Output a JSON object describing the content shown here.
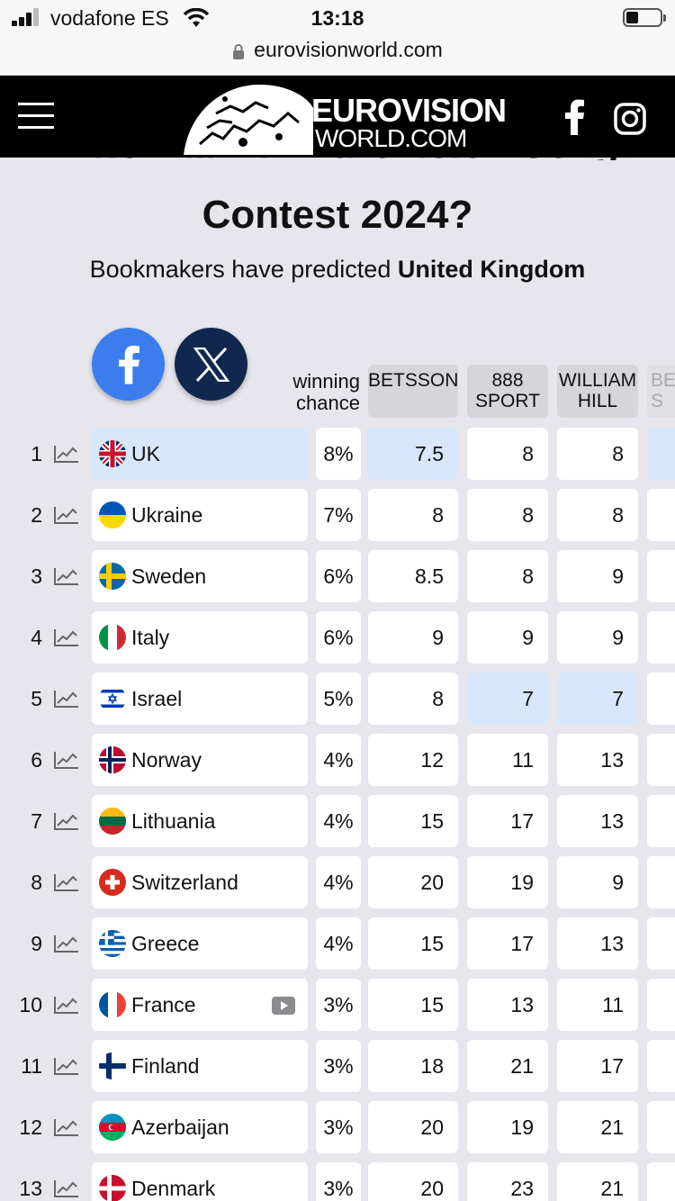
{
  "status": {
    "carrier": "vodafone ES",
    "time": "13:18"
  },
  "browser": {
    "url": "eurovisionworld.com"
  },
  "header": {
    "logo_line1": "EUROVISION",
    "logo_line2": "WORLD.COM"
  },
  "page": {
    "title_line1": "Who will win Eurovision Song",
    "title_line2": "Contest 2024?",
    "subtitle_prefix": "Bookmakers have predicted ",
    "subtitle_bold": "United Kingdom"
  },
  "table": {
    "chance_header_line1": "winning",
    "chance_header_line2": "chance",
    "bookmakers": [
      {
        "line1": "BETSSON",
        "line2": ""
      },
      {
        "line1": "888",
        "line2": "SPORT"
      },
      {
        "line1": "WILLIAM",
        "line2": "HILL"
      },
      {
        "line1": "BE",
        "line2": "S"
      }
    ],
    "rows": [
      {
        "rank": "1",
        "country": "UK",
        "flag": "uk",
        "chance": "8%",
        "odds": [
          "7.5",
          "8",
          "8"
        ],
        "highlight": [
          true,
          true,
          false,
          false
        ]
      },
      {
        "rank": "2",
        "country": "Ukraine",
        "flag": "ukraine",
        "chance": "7%",
        "odds": [
          "8",
          "8",
          "8"
        ],
        "highlight": [
          false,
          false,
          false,
          false
        ]
      },
      {
        "rank": "3",
        "country": "Sweden",
        "flag": "sweden",
        "chance": "6%",
        "odds": [
          "8.5",
          "8",
          "9"
        ],
        "highlight": [
          false,
          false,
          false,
          false
        ]
      },
      {
        "rank": "4",
        "country": "Italy",
        "flag": "italy",
        "chance": "6%",
        "odds": [
          "9",
          "9",
          "9"
        ],
        "highlight": [
          false,
          false,
          false,
          false
        ]
      },
      {
        "rank": "5",
        "country": "Israel",
        "flag": "israel",
        "chance": "5%",
        "odds": [
          "8",
          "7",
          "7"
        ],
        "highlight": [
          false,
          false,
          true,
          true
        ]
      },
      {
        "rank": "6",
        "country": "Norway",
        "flag": "norway",
        "chance": "4%",
        "odds": [
          "12",
          "11",
          "13"
        ],
        "highlight": [
          false,
          false,
          false,
          false
        ]
      },
      {
        "rank": "7",
        "country": "Lithuania",
        "flag": "lithuania",
        "chance": "4%",
        "odds": [
          "15",
          "17",
          "13"
        ],
        "highlight": [
          false,
          false,
          false,
          false
        ]
      },
      {
        "rank": "8",
        "country": "Switzerland",
        "flag": "switzerland",
        "chance": "4%",
        "odds": [
          "20",
          "19",
          "9"
        ],
        "highlight": [
          false,
          false,
          false,
          false
        ]
      },
      {
        "rank": "9",
        "country": "Greece",
        "flag": "greece",
        "chance": "4%",
        "odds": [
          "15",
          "17",
          "13"
        ],
        "highlight": [
          false,
          false,
          false,
          false
        ]
      },
      {
        "rank": "10",
        "country": "France",
        "flag": "france",
        "chance": "3%",
        "odds": [
          "15",
          "13",
          "11"
        ],
        "highlight": [
          false,
          false,
          false,
          false
        ],
        "video": true
      },
      {
        "rank": "11",
        "country": "Finland",
        "flag": "finland",
        "chance": "3%",
        "odds": [
          "18",
          "21",
          "17"
        ],
        "highlight": [
          false,
          false,
          false,
          false
        ]
      },
      {
        "rank": "12",
        "country": "Azerbaijan",
        "flag": "azerbaijan",
        "chance": "3%",
        "odds": [
          "20",
          "19",
          "21"
        ],
        "highlight": [
          false,
          false,
          false,
          false
        ]
      },
      {
        "rank": "13",
        "country": "Denmark",
        "flag": "denmark",
        "chance": "3%",
        "odds": [
          "20",
          "23",
          "21"
        ],
        "highlight": [
          false,
          false,
          false,
          false
        ]
      }
    ]
  },
  "colors": {
    "highlight": "#d8e7fb",
    "facebook": "#3b7ded",
    "x": "#10284e",
    "header": "#000000"
  }
}
